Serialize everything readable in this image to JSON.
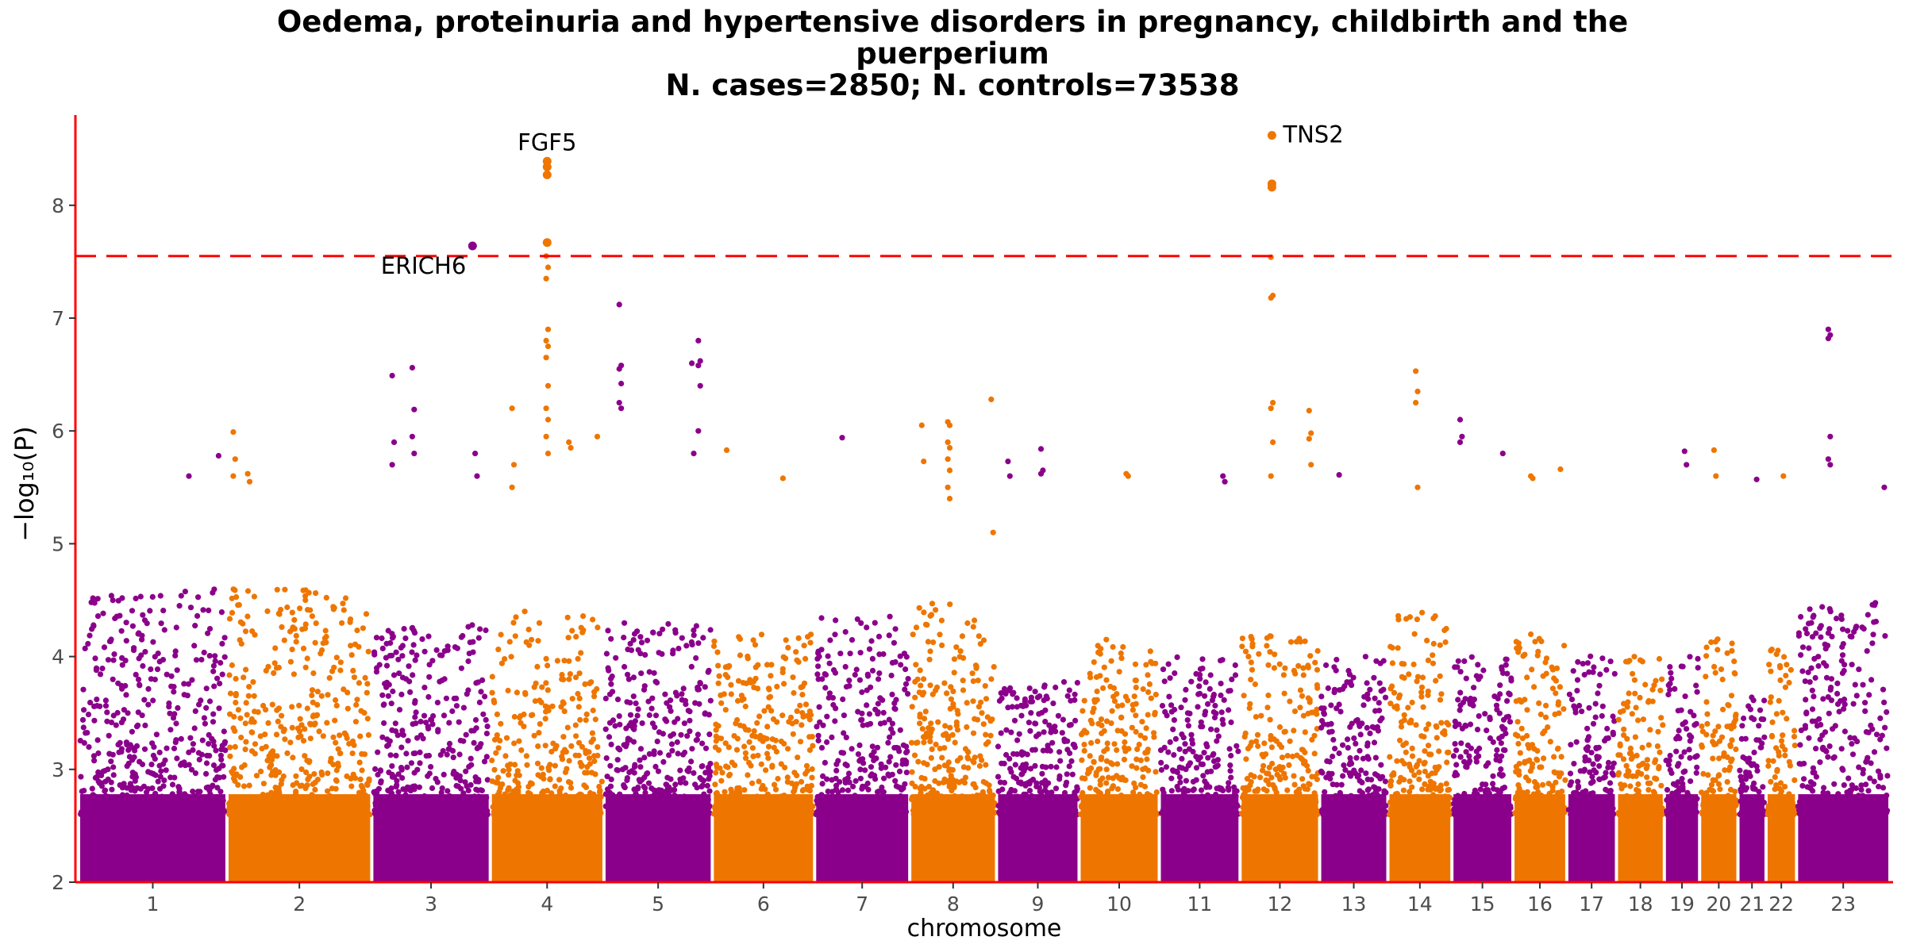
{
  "chart_data": {
    "type": "scatter",
    "subtype": "manhattan",
    "title_lines": [
      "Oedema, proteinuria and hypertensive disorders in pregnancy, childbirth and the",
      "puerperium",
      "N. cases=2850; N. controls=73538"
    ],
    "xlabel": "chromosome",
    "ylabel": "−log₁₀(P)",
    "ylim": [
      2,
      8.8
    ],
    "yticks": [
      2,
      3,
      4,
      5,
      6,
      7,
      8
    ],
    "significance_threshold": 7.55,
    "colors": {
      "odd": "#8B008B",
      "even": "#EE7600",
      "threshold": "#FF0000",
      "axis": "#FF0000"
    },
    "chromosomes": [
      {
        "label": "1",
        "length": 248,
        "max": 4.6
      },
      {
        "label": "2",
        "length": 242,
        "max": 4.6
      },
      {
        "label": "3",
        "length": 198,
        "max": 4.3
      },
      {
        "label": "4",
        "length": 190,
        "max": 4.4
      },
      {
        "label": "5",
        "length": 181,
        "max": 4.3
      },
      {
        "label": "6",
        "length": 171,
        "max": 4.2
      },
      {
        "label": "7",
        "length": 159,
        "max": 4.4
      },
      {
        "label": "8",
        "length": 145,
        "max": 4.5
      },
      {
        "label": "9",
        "length": 138,
        "max": 3.8
      },
      {
        "label": "10",
        "length": 134,
        "max": 4.2
      },
      {
        "label": "11",
        "length": 135,
        "max": 4.0
      },
      {
        "label": "12",
        "length": 133,
        "max": 4.2
      },
      {
        "label": "13",
        "length": 114,
        "max": 4.0
      },
      {
        "label": "14",
        "length": 107,
        "max": 4.4
      },
      {
        "label": "15",
        "length": 102,
        "max": 4.0
      },
      {
        "label": "16",
        "length": 90,
        "max": 4.2
      },
      {
        "label": "17",
        "length": 83,
        "max": 4.1
      },
      {
        "label": "18",
        "length": 80,
        "max": 4.0
      },
      {
        "label": "19",
        "length": 59,
        "max": 4.0
      },
      {
        "label": "20",
        "length": 64,
        "max": 4.2
      },
      {
        "label": "21",
        "length": 47,
        "max": 3.7
      },
      {
        "label": "22",
        "length": 51,
        "max": 4.2
      },
      {
        "label": "23",
        "length": 156,
        "max": 4.5
      }
    ],
    "highlighted_points": [
      {
        "chrom": "3",
        "pos": 0.85,
        "y": 7.64
      },
      {
        "chrom": "4",
        "pos": 0.5,
        "y": 8.39
      },
      {
        "chrom": "4",
        "pos": 0.5,
        "y": 8.34
      },
      {
        "chrom": "4",
        "pos": 0.5,
        "y": 8.27
      },
      {
        "chrom": "4",
        "pos": 0.5,
        "y": 7.67
      },
      {
        "chrom": "12",
        "pos": 0.4,
        "y": 8.62
      },
      {
        "chrom": "12",
        "pos": 0.4,
        "y": 8.19
      },
      {
        "chrom": "12",
        "pos": 0.4,
        "y": 8.16
      }
    ],
    "annotations": [
      {
        "text": "ERICH6",
        "chrom": "3",
        "pos": 0.85,
        "y": 7.64
      },
      {
        "text": "FGF5",
        "chrom": "4",
        "pos": 0.5,
        "y": 8.39
      },
      {
        "text": "TNS2",
        "chrom": "12",
        "pos": 0.4,
        "y": 8.62
      }
    ],
    "notable_peaks": [
      {
        "chrom": "4",
        "pos": 0.5,
        "values": [
          7.55,
          7.45,
          7.35,
          6.9,
          6.8,
          6.75,
          6.65,
          6.4,
          6.2,
          6.1,
          5.95,
          5.8
        ]
      },
      {
        "chrom": "4",
        "pos": 0.2,
        "values": [
          6.2,
          5.7,
          5.5
        ]
      },
      {
        "chrom": "4",
        "pos": 0.7,
        "values": [
          5.9,
          5.85
        ]
      },
      {
        "chrom": "4",
        "pos": 0.95,
        "values": [
          5.95
        ]
      },
      {
        "chrom": "5",
        "pos": 0.15,
        "values": [
          7.12,
          6.58,
          6.55,
          6.42,
          6.25,
          6.2
        ]
      },
      {
        "chrom": "5",
        "pos": 0.88,
        "values": [
          6.8,
          6.62,
          6.58,
          6.4,
          6.0
        ]
      },
      {
        "chrom": "5",
        "pos": 0.82,
        "values": [
          6.6,
          5.8
        ]
      },
      {
        "chrom": "3",
        "pos": 0.18,
        "values": [
          6.49,
          5.9,
          5.7
        ]
      },
      {
        "chrom": "3",
        "pos": 0.35,
        "values": [
          6.56,
          6.19,
          5.95,
          5.8
        ]
      },
      {
        "chrom": "3",
        "pos": 0.88,
        "values": [
          5.8,
          5.6
        ]
      },
      {
        "chrom": "12",
        "pos": 0.4,
        "values": [
          7.54,
          7.2,
          7.18,
          6.25,
          6.2,
          5.9,
          5.6
        ]
      },
      {
        "chrom": "12",
        "pos": 0.88,
        "values": [
          6.18,
          5.98,
          5.93,
          5.7
        ]
      },
      {
        "chrom": "14",
        "pos": 0.45,
        "values": [
          6.53,
          6.35,
          6.25,
          5.5
        ]
      },
      {
        "chrom": "23",
        "pos": 0.35,
        "values": [
          6.9,
          6.85,
          6.82,
          5.95,
          5.75,
          5.7
        ]
      },
      {
        "chrom": "23",
        "pos": 0.95,
        "values": [
          5.5
        ]
      },
      {
        "chrom": "8",
        "pos": 0.45,
        "values": [
          6.08,
          6.05,
          5.9,
          5.85,
          5.75,
          5.65,
          5.5,
          5.4
        ]
      },
      {
        "chrom": "8",
        "pos": 0.15,
        "values": [
          6.05,
          5.73
        ]
      },
      {
        "chrom": "8",
        "pos": 0.95,
        "values": [
          6.28,
          5.1
        ]
      },
      {
        "chrom": "2",
        "pos": 0.05,
        "values": [
          5.99,
          5.75,
          5.6
        ]
      },
      {
        "chrom": "2",
        "pos": 0.15,
        "values": [
          5.62,
          5.55
        ]
      },
      {
        "chrom": "15",
        "pos": 0.15,
        "values": [
          6.1,
          5.95,
          5.9
        ]
      },
      {
        "chrom": "15",
        "pos": 0.85,
        "values": [
          5.8
        ]
      },
      {
        "chrom": "1",
        "pos": 0.95,
        "values": [
          5.78
        ]
      },
      {
        "chrom": "1",
        "pos": 0.75,
        "values": [
          5.6
        ]
      },
      {
        "chrom": "6",
        "pos": 0.15,
        "values": [
          5.83
        ]
      },
      {
        "chrom": "6",
        "pos": 0.7,
        "values": [
          5.58
        ]
      },
      {
        "chrom": "7",
        "pos": 0.3,
        "values": [
          5.94
        ]
      },
      {
        "chrom": "9",
        "pos": 0.15,
        "values": [
          5.73,
          5.6
        ]
      },
      {
        "chrom": "9",
        "pos": 0.55,
        "values": [
          5.84,
          5.65,
          5.62
        ]
      },
      {
        "chrom": "10",
        "pos": 0.6,
        "values": [
          5.62,
          5.6
        ]
      },
      {
        "chrom": "11",
        "pos": 0.8,
        "values": [
          5.6,
          5.55
        ]
      },
      {
        "chrom": "13",
        "pos": 0.3,
        "values": [
          5.61
        ]
      },
      {
        "chrom": "16",
        "pos": 0.35,
        "values": [
          5.6,
          5.58
        ]
      },
      {
        "chrom": "16",
        "pos": 0.9,
        "values": [
          5.66
        ]
      },
      {
        "chrom": "19",
        "pos": 0.6,
        "values": [
          5.82,
          5.7
        ]
      },
      {
        "chrom": "20",
        "pos": 0.4,
        "values": [
          5.83,
          5.6
        ]
      },
      {
        "chrom": "21",
        "pos": 0.7,
        "values": [
          5.57
        ]
      },
      {
        "chrom": "22",
        "pos": 0.6,
        "values": [
          5.6
        ]
      }
    ]
  }
}
